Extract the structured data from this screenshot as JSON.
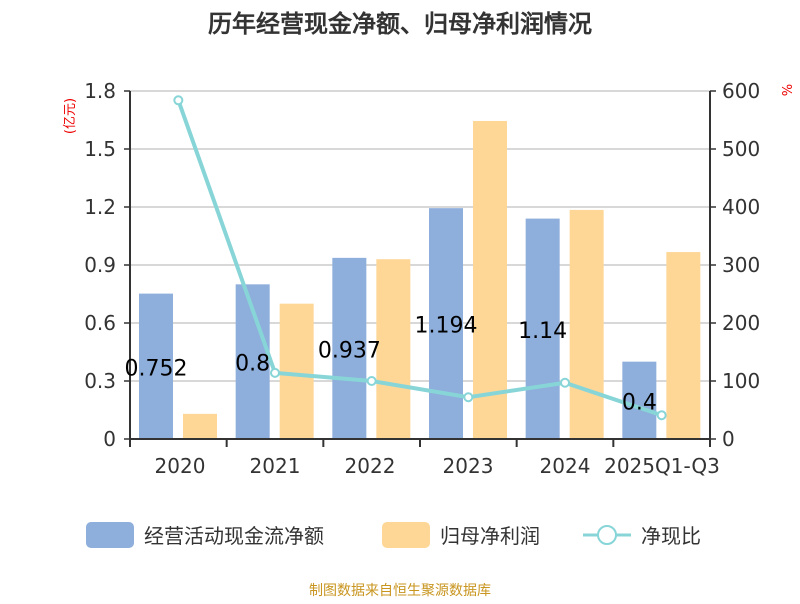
{
  "chart_data": {
    "type": "bar",
    "title": "历年经营现金净额、归母净利润情况",
    "categories": [
      "2020",
      "2021",
      "2022",
      "2023",
      "2024",
      "2025Q1-Q3"
    ],
    "series": [
      {
        "name": "经营活动现金流净额",
        "type": "bar",
        "axis": "left",
        "color": "#8eaedb",
        "values": [
          0.752,
          0.8,
          0.937,
          1.194,
          1.14,
          0.4
        ],
        "labels": [
          "0.752",
          "0.8",
          "0.937",
          "1.194",
          "1.14",
          "0.4"
        ]
      },
      {
        "name": "归母净利润",
        "type": "bar",
        "axis": "left",
        "color": "#fed797",
        "values": [
          0.13,
          0.7,
          0.93,
          1.645,
          1.185,
          0.967
        ]
      },
      {
        "name": "净现比",
        "type": "line",
        "axis": "right",
        "color": "#88d5d8",
        "values": [
          584,
          114,
          100,
          72,
          97,
          41
        ]
      }
    ],
    "ylabel_left": "(亿元)",
    "ylabel_right": "%",
    "ylim_left": [
      0,
      1.8
    ],
    "ylim_right": [
      0,
      600
    ],
    "yticks_left": [
      "0",
      "0.3",
      "0.6",
      "0.9",
      "1.2",
      "1.5",
      "1.8"
    ],
    "yticks_right": [
      "0",
      "100",
      "200",
      "300",
      "400",
      "500",
      "600"
    ],
    "grid": true,
    "legend_position": "bottom",
    "source": "制图数据来自恒生聚源数据库"
  }
}
